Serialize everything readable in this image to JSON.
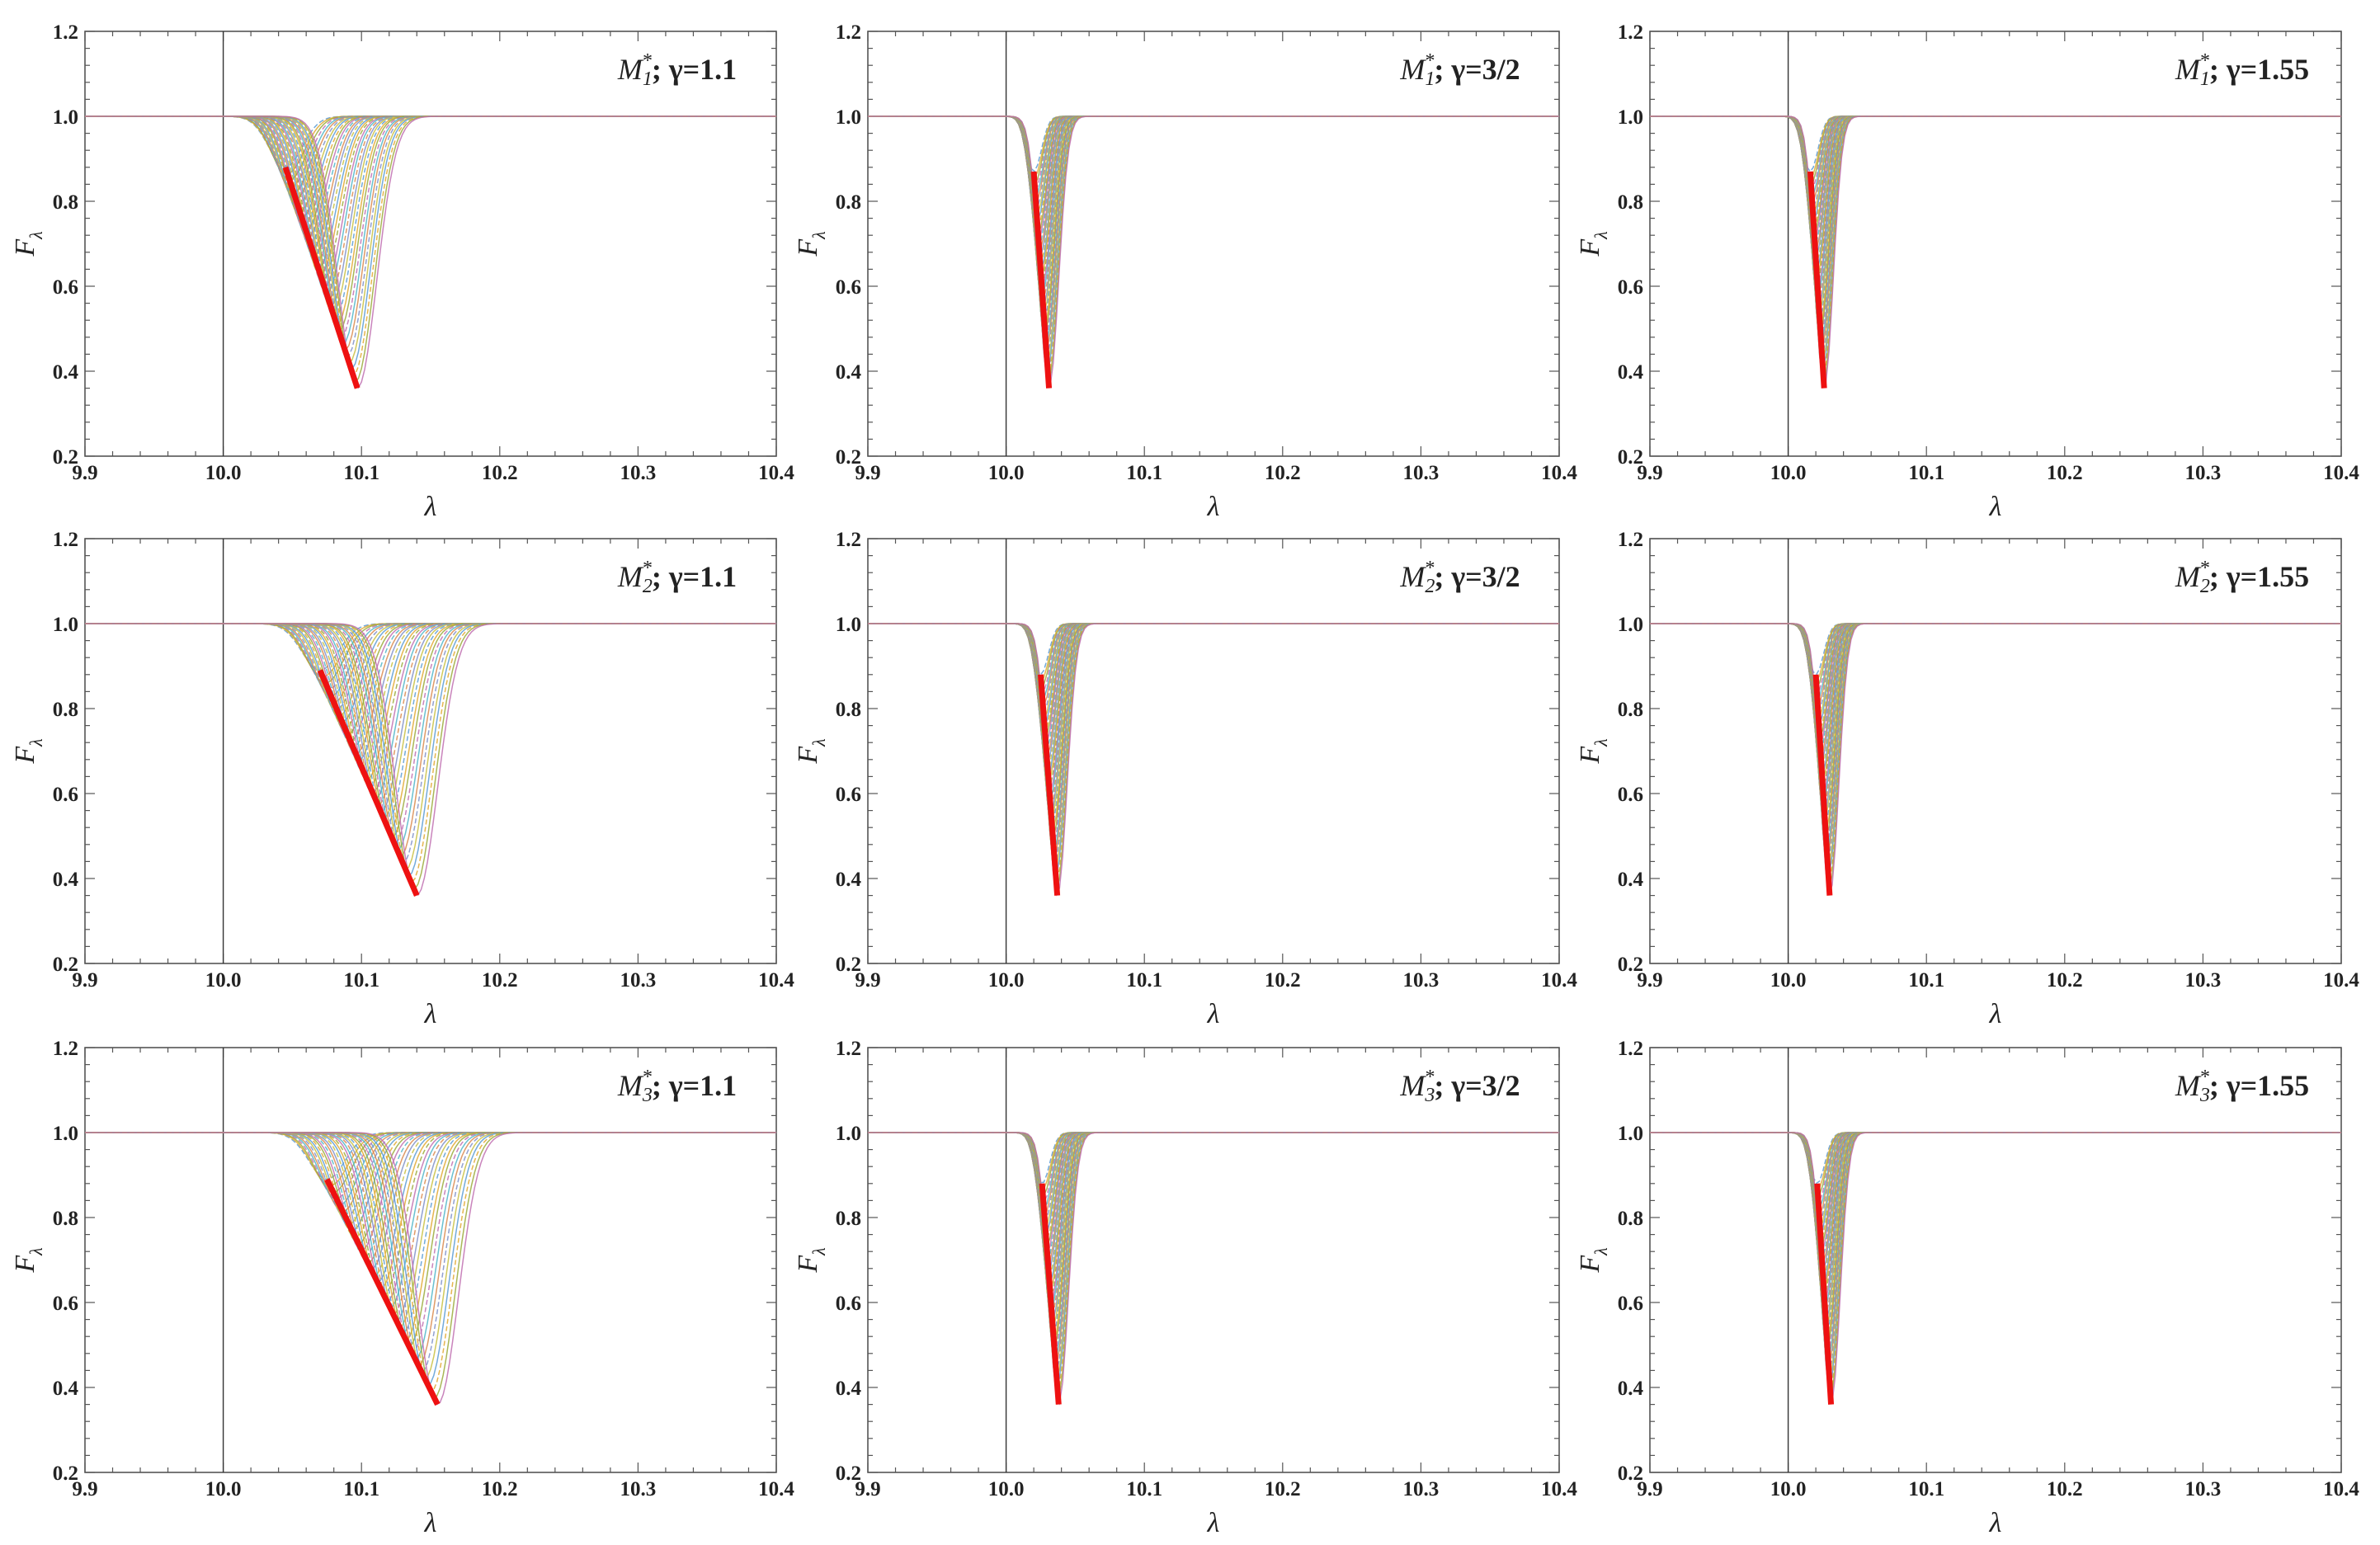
{
  "figure": {
    "rows": 3,
    "cols": 3,
    "colors": {
      "background": "#ffffff",
      "frame": "#555555",
      "vline": "#333333",
      "highlight": "#ee1111",
      "fill": "#8c9aa6",
      "family": [
        "#5b9bd5",
        "#e0a830",
        "#9aaa3a",
        "#c06fb0",
        "#4fb5c8",
        "#d98a4e",
        "#7e8fc8",
        "#c8c040"
      ]
    }
  },
  "chart_data": [
    {
      "type": "line",
      "panel": "r1c1",
      "title": {
        "m": "M",
        "sub": "1",
        "sup": "*",
        "rest": "; γ=1.1"
      },
      "xlabel": "λ",
      "ylabel": "F",
      "ylabel_sub": "λ",
      "xlim": [
        9.9,
        10.4
      ],
      "ylim": [
        0.2,
        1.2
      ],
      "xticks": [
        "9.9",
        "10.0",
        "10.1",
        "10.2",
        "10.3",
        "10.4"
      ],
      "yticks": [
        "0.2",
        "0.4",
        "0.6",
        "0.8",
        "1.0",
        "1.2"
      ],
      "vline_x": 10.0,
      "baseline": 1.0,
      "family": {
        "count": 36,
        "center_start": 10.045,
        "center_end": 10.097,
        "width_start": 0.012,
        "width_end": 0.014,
        "depth_start": 0.12,
        "depth_end": 0.64
      },
      "red_locus": {
        "x": [
          10.045,
          10.097
        ],
        "y": [
          0.88,
          0.36
        ]
      }
    },
    {
      "type": "line",
      "panel": "r1c2",
      "title": {
        "m": "M",
        "sub": "1",
        "sup": "*",
        "rest": "; γ=3/2"
      },
      "xlabel": "λ",
      "ylabel": "F",
      "ylabel_sub": "λ",
      "xlim": [
        9.9,
        10.4
      ],
      "ylim": [
        0.2,
        1.2
      ],
      "xticks": [
        "9.9",
        "10.0",
        "10.1",
        "10.2",
        "10.3",
        "10.4"
      ],
      "yticks": [
        "0.2",
        "0.4",
        "0.6",
        "0.8",
        "1.0",
        "1.2"
      ],
      "vline_x": 10.0,
      "baseline": 1.0,
      "family": {
        "count": 36,
        "center_start": 10.02,
        "center_end": 10.031,
        "width_start": 0.0055,
        "width_end": 0.007,
        "depth_start": 0.13,
        "depth_end": 0.64
      },
      "red_locus": {
        "x": [
          10.02,
          10.031
        ],
        "y": [
          0.87,
          0.36
        ]
      }
    },
    {
      "type": "line",
      "panel": "r1c3",
      "title": {
        "m": "M",
        "sub": "1",
        "sup": "*",
        "rest": "; γ=1.55"
      },
      "xlabel": "λ",
      "ylabel": "F",
      "ylabel_sub": "λ",
      "xlim": [
        9.9,
        10.4
      ],
      "ylim": [
        0.2,
        1.2
      ],
      "xticks": [
        "9.9",
        "10.0",
        "10.1",
        "10.2",
        "10.3",
        "10.4"
      ],
      "yticks": [
        "0.2",
        "0.4",
        "0.6",
        "0.8",
        "1.0",
        "1.2"
      ],
      "vline_x": 10.0,
      "baseline": 1.0,
      "family": {
        "count": 36,
        "center_start": 10.016,
        "center_end": 10.026,
        "width_start": 0.0055,
        "width_end": 0.0065,
        "depth_start": 0.13,
        "depth_end": 0.64
      },
      "red_locus": {
        "x": [
          10.016,
          10.026
        ],
        "y": [
          0.87,
          0.36
        ]
      }
    },
    {
      "type": "line",
      "panel": "r2c1",
      "title": {
        "m": "M",
        "sub": "2",
        "sup": "*",
        "rest": "; γ=1.1"
      },
      "xlabel": "λ",
      "ylabel": "F",
      "ylabel_sub": "λ",
      "xlim": [
        9.9,
        10.4
      ],
      "ylim": [
        0.2,
        1.2
      ],
      "xticks": [
        "9.9",
        "10.0",
        "10.1",
        "10.2",
        "10.3",
        "10.4"
      ],
      "yticks": [
        "0.2",
        "0.4",
        "0.6",
        "0.8",
        "1.0",
        "1.2"
      ],
      "vline_x": 10.0,
      "baseline": 1.0,
      "family": {
        "count": 36,
        "center_start": 10.07,
        "center_end": 10.14,
        "width_start": 0.013,
        "width_end": 0.015,
        "depth_start": 0.11,
        "depth_end": 0.64
      },
      "red_locus": {
        "x": [
          10.07,
          10.14
        ],
        "y": [
          0.89,
          0.36
        ]
      }
    },
    {
      "type": "line",
      "panel": "r2c2",
      "title": {
        "m": "M",
        "sub": "2",
        "sup": "*",
        "rest": "; γ=3/2"
      },
      "xlabel": "λ",
      "ylabel": "F",
      "ylabel_sub": "λ",
      "xlim": [
        9.9,
        10.4
      ],
      "ylim": [
        0.2,
        1.2
      ],
      "xticks": [
        "9.9",
        "10.0",
        "10.1",
        "10.2",
        "10.3",
        "10.4"
      ],
      "yticks": [
        "0.2",
        "0.4",
        "0.6",
        "0.8",
        "1.0",
        "1.2"
      ],
      "vline_x": 10.0,
      "baseline": 1.0,
      "family": {
        "count": 36,
        "center_start": 10.025,
        "center_end": 10.037,
        "width_start": 0.0055,
        "width_end": 0.007,
        "depth_start": 0.12,
        "depth_end": 0.64
      },
      "red_locus": {
        "x": [
          10.025,
          10.037
        ],
        "y": [
          0.88,
          0.36
        ]
      }
    },
    {
      "type": "line",
      "panel": "r2c3",
      "title": {
        "m": "M",
        "sub": "2",
        "sup": "*",
        "rest": "; γ=1.55"
      },
      "xlabel": "λ",
      "ylabel": "F",
      "ylabel_sub": "λ",
      "xlim": [
        9.9,
        10.4
      ],
      "ylim": [
        0.2,
        1.2
      ],
      "xticks": [
        "9.9",
        "10.0",
        "10.1",
        "10.2",
        "10.3",
        "10.4"
      ],
      "yticks": [
        "0.2",
        "0.4",
        "0.6",
        "0.8",
        "1.0",
        "1.2"
      ],
      "vline_x": 10.0,
      "baseline": 1.0,
      "family": {
        "count": 36,
        "center_start": 10.02,
        "center_end": 10.03,
        "width_start": 0.0055,
        "width_end": 0.0065,
        "depth_start": 0.12,
        "depth_end": 0.64
      },
      "red_locus": {
        "x": [
          10.02,
          10.03
        ],
        "y": [
          0.88,
          0.36
        ]
      }
    },
    {
      "type": "line",
      "panel": "r3c1",
      "title": {
        "m": "M",
        "sub": "3",
        "sup": "*",
        "rest": "; γ=1.1"
      },
      "xlabel": "λ",
      "ylabel": "F",
      "ylabel_sub": "λ",
      "xlim": [
        9.9,
        10.4
      ],
      "ylim": [
        0.2,
        1.2
      ],
      "xticks": [
        "9.9",
        "10.0",
        "10.1",
        "10.2",
        "10.3",
        "10.4"
      ],
      "yticks": [
        "0.2",
        "0.4",
        "0.6",
        "0.8",
        "1.0",
        "1.2"
      ],
      "vline_x": 10.0,
      "baseline": 1.0,
      "family": {
        "count": 36,
        "center_start": 10.075,
        "center_end": 10.155,
        "width_start": 0.013,
        "width_end": 0.015,
        "depth_start": 0.11,
        "depth_end": 0.64
      },
      "red_locus": {
        "x": [
          10.075,
          10.155
        ],
        "y": [
          0.89,
          0.36
        ]
      }
    },
    {
      "type": "line",
      "panel": "r3c2",
      "title": {
        "m": "M",
        "sub": "3",
        "sup": "*",
        "rest": "; γ=3/2"
      },
      "xlabel": "λ",
      "ylabel": "F",
      "ylabel_sub": "λ",
      "xlim": [
        9.9,
        10.4
      ],
      "ylim": [
        0.2,
        1.2
      ],
      "xticks": [
        "9.9",
        "10.0",
        "10.1",
        "10.2",
        "10.3",
        "10.4"
      ],
      "yticks": [
        "0.2",
        "0.4",
        "0.6",
        "0.8",
        "1.0",
        "1.2"
      ],
      "vline_x": 10.0,
      "baseline": 1.0,
      "family": {
        "count": 36,
        "center_start": 10.026,
        "center_end": 10.038,
        "width_start": 0.0055,
        "width_end": 0.007,
        "depth_start": 0.12,
        "depth_end": 0.64
      },
      "red_locus": {
        "x": [
          10.026,
          10.038
        ],
        "y": [
          0.88,
          0.36
        ]
      }
    },
    {
      "type": "line",
      "panel": "r3c3",
      "title": {
        "m": "M",
        "sub": "3",
        "sup": "*",
        "rest": "; γ=1.55"
      },
      "xlabel": "λ",
      "ylabel": "F",
      "ylabel_sub": "λ",
      "xlim": [
        9.9,
        10.4
      ],
      "ylim": [
        0.2,
        1.2
      ],
      "xticks": [
        "9.9",
        "10.0",
        "10.1",
        "10.2",
        "10.3",
        "10.4"
      ],
      "yticks": [
        "0.2",
        "0.4",
        "0.6",
        "0.8",
        "1.0",
        "1.2"
      ],
      "vline_x": 10.0,
      "baseline": 1.0,
      "family": {
        "count": 36,
        "center_start": 10.021,
        "center_end": 10.031,
        "width_start": 0.0055,
        "width_end": 0.0065,
        "depth_start": 0.12,
        "depth_end": 0.64
      },
      "red_locus": {
        "x": [
          10.021,
          10.031
        ],
        "y": [
          0.88,
          0.36
        ]
      }
    }
  ]
}
